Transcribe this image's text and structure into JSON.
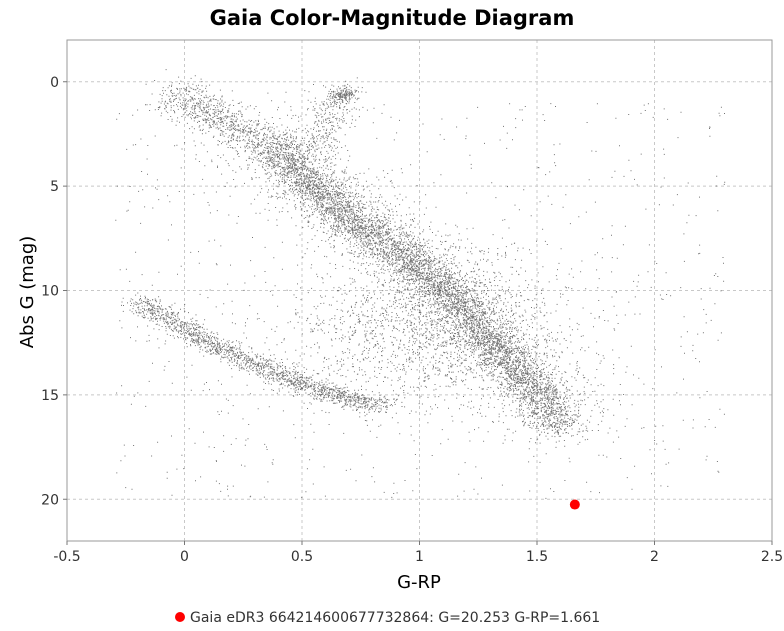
{
  "chart_data": {
    "type": "scatter",
    "title": "Gaia Color-Magnitude Diagram",
    "xlabel": "G-RP",
    "ylabel": "Abs G (mag)",
    "xlim": [
      -0.5,
      2.5
    ],
    "ylim": [
      22,
      -2
    ],
    "y_inverted": true,
    "xticks": [
      -0.5,
      0,
      0.5,
      1,
      1.5,
      2,
      2.5
    ],
    "xtick_labels": [
      "-0.5",
      "0",
      "0.5",
      "1",
      "1.5",
      "2",
      "2.5"
    ],
    "yticks": [
      0,
      5,
      10,
      15,
      20
    ],
    "ytick_labels": [
      "0",
      "5",
      "10",
      "15",
      "20"
    ],
    "grid": true,
    "legend_position": "bottom-center",
    "series": [
      {
        "name": "",
        "color": "#000000",
        "marker": "dot",
        "description_of_density": [
          {
            "component": "main sequence",
            "path": [
              [
                0.35,
                2.8
              ],
              [
                0.5,
                4.5
              ],
              [
                0.7,
                6.5
              ],
              [
                0.95,
                8.5
              ],
              [
                1.15,
                10.5
              ],
              [
                1.35,
                13.0
              ],
              [
                1.55,
                15.5
              ],
              [
                1.6,
                16.5
              ]
            ]
          },
          {
            "component": "upper main sequence",
            "path": [
              [
                -0.05,
                0.5
              ],
              [
                0.1,
                1.5
              ],
              [
                0.3,
                2.6
              ]
            ]
          },
          {
            "component": "red clump",
            "center": [
              0.68,
              0.6
            ]
          },
          {
            "component": "giant branch",
            "path": [
              [
                0.55,
                3.5
              ],
              [
                0.6,
                2.0
              ],
              [
                0.65,
                0.6
              ]
            ]
          },
          {
            "component": "white dwarf sequence",
            "path": [
              [
                -0.2,
                10.5
              ],
              [
                0.1,
                12.5
              ],
              [
                0.4,
                14.0
              ],
              [
                0.7,
                15.2
              ],
              [
                0.85,
                15.5
              ]
            ]
          }
        ]
      },
      {
        "name": "Gaia eDR3 664214600677732864: G=20.253 G-RP=1.661",
        "color": "#ff0000",
        "marker": "circle",
        "points": [
          {
            "x": 1.661,
            "y": 20.253
          }
        ]
      }
    ]
  },
  "legend": {
    "entries": [
      {
        "label": "Gaia eDR3 664214600677732864: G=20.253 G-RP=1.661",
        "color": "#ff0000"
      }
    ]
  }
}
